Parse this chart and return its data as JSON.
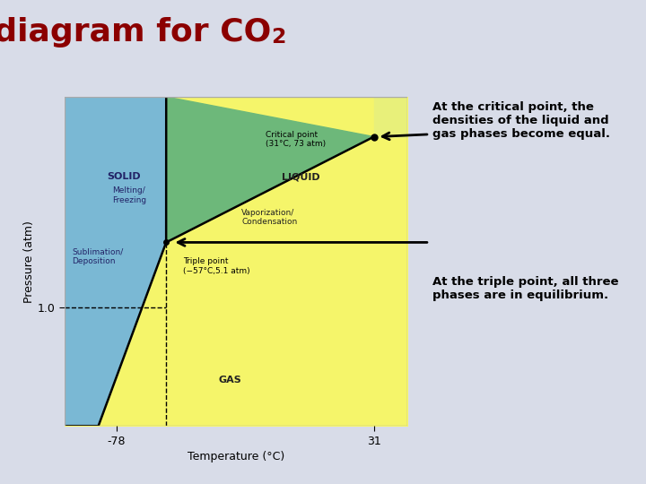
{
  "bg_color": "#d8dce8",
  "chart_bg": "#ffffff",
  "chart_border": "#cccccc",
  "title_color": "#8b0000",
  "title_fontsize": 26,
  "xlabel": "Temperature (°C)",
  "ylabel": "Pressure (atm)",
  "solid_color": "#7ab8d4",
  "liquid_color": "#6db87a",
  "gas_color": "#f5f56a",
  "supercritical_color": "#e8f07a",
  "T_triple": -57,
  "P_triple": 5.1,
  "T_crit": 31,
  "P_crit": 73,
  "T_min": -100,
  "T_max": 45,
  "P_min_log": -1.3,
  "P_max_log": 2.3,
  "annotation_critical": "At the critical point, the\ndensities of the liquid and\ngas phases become equal.",
  "annotation_triple": "At the triple point, all three\nphases are in equilibrium.",
  "label_solid": "SOLID",
  "label_liquid": "LIQUID",
  "label_gas": "GAS",
  "label_melting": "Melting/\nFreezing",
  "label_sublimation": "Sublimation/\nDeposition",
  "label_vaporization": "Vaporization/\nCondensation",
  "label_critical_point": "Critical point\n(31°C, 73 atm)",
  "label_triple_point": "Triple point\n(−57°C,5.1 atm)"
}
